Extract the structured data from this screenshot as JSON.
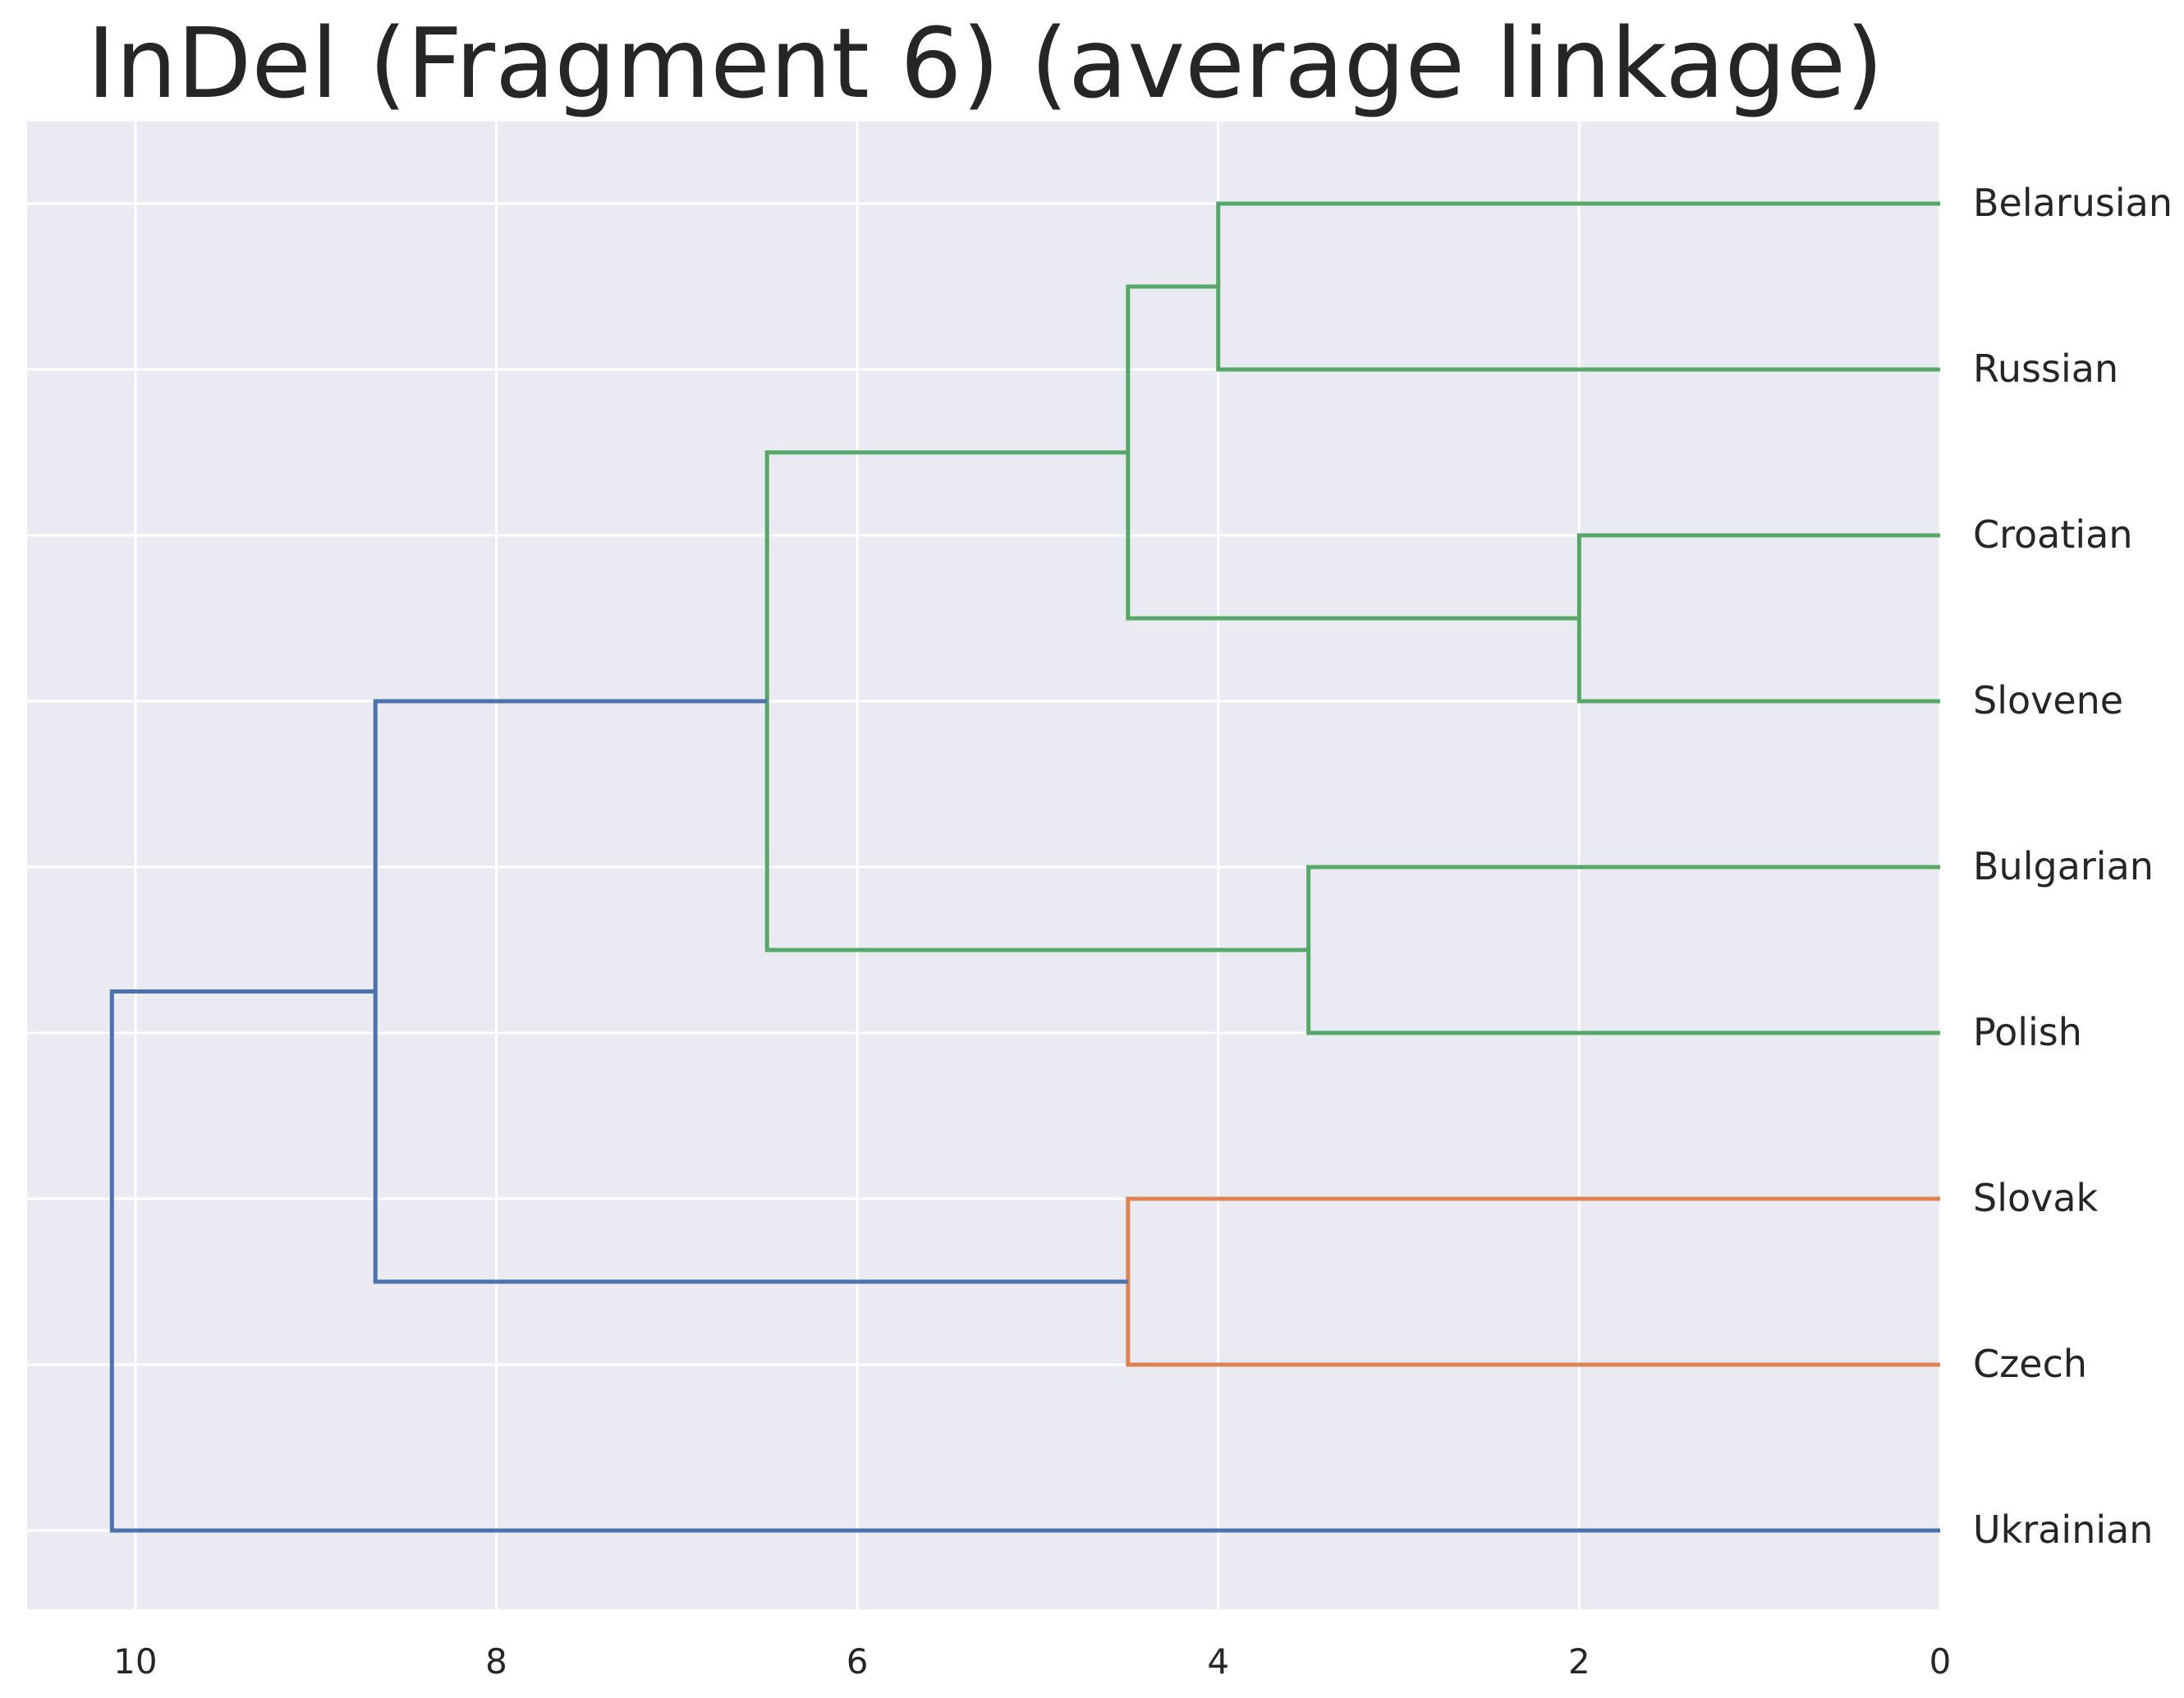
{
  "chart_data": {
    "type": "dendrogram",
    "title": "InDel (Fragment 6) (average linkage)",
    "orientation": "left",
    "linkage": "average",
    "xlabel": "",
    "ylabel": "",
    "xlim": [
      10.6,
      0
    ],
    "xticks": [
      10,
      8,
      6,
      4,
      2,
      0
    ],
    "grid": true,
    "leaves": [
      "Belarusian",
      "Russian",
      "Croatian",
      "Slovene",
      "Bulgarian",
      "Polish",
      "Slovak",
      "Czech",
      "Ukrainian"
    ],
    "colors": {
      "green": "#55a868",
      "orange": "#dd8452",
      "blue": "#4c72b0",
      "background": "#eaeaf2",
      "grid": "#ffffff",
      "text": "#262626"
    },
    "merges": [
      {
        "a": "Belarusian",
        "b": "Russian",
        "id": "m1",
        "height": 4.0,
        "color": "green"
      },
      {
        "a": "Croatian",
        "b": "Slovene",
        "id": "m2",
        "height": 2.0,
        "color": "green"
      },
      {
        "a": "m1",
        "b": "m2",
        "id": "m3",
        "height": 4.5,
        "color": "green"
      },
      {
        "a": "Bulgarian",
        "b": "Polish",
        "id": "m4",
        "height": 3.5,
        "color": "green"
      },
      {
        "a": "m3",
        "b": "m4",
        "id": "m5",
        "height": 6.5,
        "color": "green"
      },
      {
        "a": "Slovak",
        "b": "Czech",
        "id": "m6",
        "height": 4.5,
        "color": "orange"
      },
      {
        "a": "m5",
        "b": "m6",
        "id": "m7",
        "height": 8.67,
        "color": "blue"
      },
      {
        "a": "m7",
        "b": "Ukrainian",
        "id": "m8",
        "height": 10.13,
        "color": "blue"
      }
    ]
  }
}
